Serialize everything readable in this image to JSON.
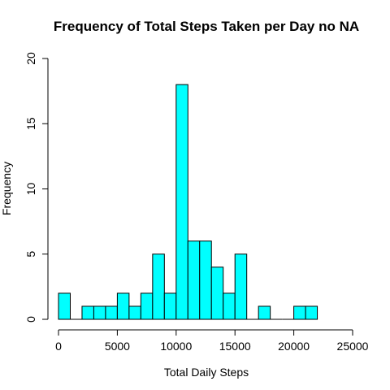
{
  "chart_data": {
    "type": "bar",
    "title": "Frequency of Total Steps Taken per Day no NA",
    "xlabel": "Total Daily Steps",
    "ylabel": "Frequency",
    "xlim": [
      0,
      25000
    ],
    "ylim": [
      0,
      20
    ],
    "x_ticks": [
      0,
      5000,
      10000,
      15000,
      20000,
      25000
    ],
    "y_ticks": [
      0,
      5,
      10,
      15,
      20
    ],
    "x_tick_labels": [
      "0",
      "5000",
      "10000",
      "15000",
      "20000",
      "25000"
    ],
    "y_tick_labels": [
      "0",
      "5",
      "10",
      "15",
      "20"
    ],
    "bin_width": 1000,
    "bins": [
      {
        "start": 0,
        "end": 1000,
        "count": 2
      },
      {
        "start": 1000,
        "end": 2000,
        "count": 0
      },
      {
        "start": 2000,
        "end": 3000,
        "count": 1
      },
      {
        "start": 3000,
        "end": 4000,
        "count": 1
      },
      {
        "start": 4000,
        "end": 5000,
        "count": 1
      },
      {
        "start": 5000,
        "end": 6000,
        "count": 2
      },
      {
        "start": 6000,
        "end": 7000,
        "count": 1
      },
      {
        "start": 7000,
        "end": 8000,
        "count": 2
      },
      {
        "start": 8000,
        "end": 9000,
        "count": 5
      },
      {
        "start": 9000,
        "end": 10000,
        "count": 2
      },
      {
        "start": 10000,
        "end": 11000,
        "count": 18
      },
      {
        "start": 11000,
        "end": 12000,
        "count": 6
      },
      {
        "start": 12000,
        "end": 13000,
        "count": 6
      },
      {
        "start": 13000,
        "end": 14000,
        "count": 4
      },
      {
        "start": 14000,
        "end": 15000,
        "count": 2
      },
      {
        "start": 15000,
        "end": 16000,
        "count": 5
      },
      {
        "start": 16000,
        "end": 17000,
        "count": 0
      },
      {
        "start": 17000,
        "end": 18000,
        "count": 1
      },
      {
        "start": 18000,
        "end": 19000,
        "count": 0
      },
      {
        "start": 19000,
        "end": 20000,
        "count": 0
      },
      {
        "start": 20000,
        "end": 21000,
        "count": 1
      },
      {
        "start": 21000,
        "end": 22000,
        "count": 1
      }
    ],
    "bar_color": "#00FFFF",
    "bar_border_color": "#000000",
    "grid": false,
    "legend": "none"
  }
}
